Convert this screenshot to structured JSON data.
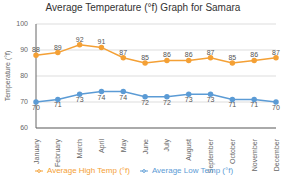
{
  "chart_data": {
    "type": "line",
    "title": "Average Temperature (°f) Graph for Samara",
    "categories": [
      "January",
      "February",
      "March",
      "April",
      "May",
      "June",
      "July",
      "August",
      "September",
      "October",
      "November",
      "December"
    ],
    "series": [
      {
        "name": "Average High Temp (°f)",
        "color": "#F4A035",
        "values": [
          88,
          89,
          92,
          91,
          87,
          85,
          86,
          86,
          87,
          85,
          86,
          87
        ]
      },
      {
        "name": "Average Low Temp (°f)",
        "color": "#5B9BD5",
        "values": [
          70,
          71,
          73,
          74,
          74,
          72,
          72,
          73,
          73,
          71,
          71,
          70
        ]
      }
    ],
    "ylabel": "Temperature (°f)",
    "ylim": [
      60,
      100
    ],
    "yticks": [
      60,
      70,
      80,
      90,
      100
    ],
    "grid": true,
    "data_labels": true,
    "legend": "bottom",
    "marker": "circle"
  }
}
